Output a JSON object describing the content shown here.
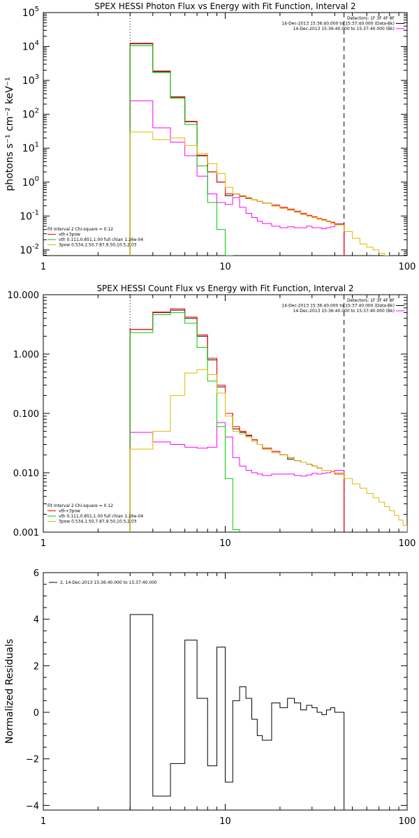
{
  "chart_data": [
    {
      "type": "line",
      "title": "SPEX HESSI Photon Flux vs Energy with Fit Function, Interval 2",
      "xlabel": "",
      "ylabel": "photons s⁻¹ cm⁻² keV⁻¹",
      "x_scale": "log",
      "y_scale": "log",
      "xlim": [
        1,
        100
      ],
      "ylim": [
        0.0068,
        100000
      ],
      "x_ticks": [
        1,
        10,
        100
      ],
      "x_tick_labels": [
        "1",
        "10",
        "100"
      ],
      "y_ticks": [
        0.01,
        0.1,
        1,
        10,
        100,
        1000,
        10000,
        100000
      ],
      "y_tick_labels": [
        {
          "base": "10",
          "exp": "-2"
        },
        {
          "base": "10",
          "exp": "-1"
        },
        {
          "base": "10",
          "exp": "0"
        },
        {
          "base": "10",
          "exp": "1"
        },
        {
          "base": "10",
          "exp": "2"
        },
        {
          "base": "10",
          "exp": "3"
        },
        {
          "base": "10",
          "exp": "4"
        },
        {
          "base": "10",
          "exp": "5"
        }
      ],
      "vlines": [
        {
          "x": 3.0,
          "style": "dotted"
        },
        {
          "x": 45.0,
          "style": "dashed"
        }
      ],
      "legend_top_right": [
        {
          "text": "Detectors: 1F 3F 4F 8F",
          "color": "#000000",
          "line": false
        },
        {
          "text": "14-Dec-2013 15:36:40.000 to 15:37:40.000 (Data-Bk)",
          "color": "#000000",
          "line": true
        },
        {
          "text": "14-Dec-2013 15:36:40.000 to 15:37:40.000 (Bk)",
          "color": "#ff00ff",
          "line": true
        }
      ],
      "legend_bottom_left": [
        {
          "text": "Fit Interval  2   Chi-square = 0.12",
          "color": "#000000",
          "line": false
        },
        {
          "text": "vth+3pow",
          "color": "#ff0000",
          "line": true
        },
        {
          "text": "vth 0.111,0.851,1.00  full chian 1.26e-04",
          "color": "#00cc00",
          "line": true
        },
        {
          "text": "3pow 0.534,1.50,7.87,9.50,10.5,2.03",
          "color": "#ddbb00",
          "line": true
        }
      ],
      "bin_edges": [
        3,
        4,
        5,
        6,
        7,
        8,
        9,
        10,
        11,
        12,
        13,
        14,
        15,
        16,
        18,
        20,
        22,
        24,
        26,
        28,
        30,
        32,
        34,
        36,
        38,
        40,
        45,
        50,
        55,
        60,
        65,
        70,
        75,
        80,
        85,
        90,
        95,
        100
      ],
      "series": [
        {
          "color": "#000000",
          "step": true,
          "values": [
            12000,
            1800,
            320,
            60,
            6,
            2,
            1,
            0.4,
            0.45,
            0.38,
            0.33,
            0.3,
            0.27,
            0.24,
            0.2,
            0.17,
            0.15,
            0.13,
            0.11,
            0.1,
            0.09,
            0.08,
            0.075,
            0.07,
            0.065,
            0.058
          ]
        },
        {
          "color": "#ff00ff",
          "step": true,
          "values": [
            250,
            40,
            15,
            6,
            1.5,
            0.45,
            0.25,
            0.22,
            0.35,
            0.18,
            0.12,
            0.09,
            0.07,
            0.06,
            0.05,
            0.045,
            0.048,
            0.045,
            0.045,
            0.05,
            0.045,
            0.045,
            0.042,
            0.045,
            0.048,
            0.055
          ]
        },
        {
          "color": "#ff0000",
          "step": true,
          "values": [
            12500,
            1900,
            330,
            62,
            6.2,
            2.0,
            1.0,
            0.45,
            0.45,
            0.38,
            0.33,
            0.3,
            0.27,
            0.24,
            0.21,
            0.18,
            0.16,
            0.14,
            0.12,
            0.105,
            0.095,
            0.085,
            0.078,
            0.07,
            0.065,
            0.058
          ]
        },
        {
          "color": "#00cc00",
          "step": true,
          "values": [
            10500,
            1700,
            300,
            50,
            3,
            0.25,
            0.04,
            0.006
          ]
        },
        {
          "color": "#ddbb00",
          "step": true,
          "values": [
            30,
            18,
            20,
            12,
            7,
            3.5,
            1.8,
            0.7,
            0.45,
            0.4,
            0.35,
            0.3,
            0.27,
            0.24,
            0.2,
            0.17,
            0.15,
            0.13,
            0.11,
            0.1,
            0.09,
            0.08,
            0.075,
            0.068,
            0.06,
            0.055,
            0.035,
            0.022,
            0.015,
            0.012,
            0.01,
            0.008,
            0.0065
          ]
        }
      ]
    },
    {
      "type": "line",
      "title": "SPEX HESSI Count Flux vs Energy with Fit Function, Interval 2",
      "xlabel": "",
      "ylabel": "",
      "x_scale": "log",
      "y_scale": "log",
      "xlim": [
        1,
        100
      ],
      "ylim": [
        0.001,
        10
      ],
      "x_ticks": [
        1,
        10,
        100
      ],
      "x_tick_labels": [
        "1",
        "10",
        "100"
      ],
      "y_ticks": [
        0.001,
        0.01,
        0.1,
        1,
        10
      ],
      "y_tick_labels": [
        "0.001",
        "0.010",
        "0.100",
        "1.000",
        "10.000"
      ],
      "vlines": [
        {
          "x": 3.0,
          "style": "dotted"
        },
        {
          "x": 45.0,
          "style": "dashed"
        }
      ],
      "legend_top_right": [
        {
          "text": "Detectors: 1F 3F 4F 8F",
          "color": "#000000",
          "line": false
        },
        {
          "text": "14-Dec-2013 15:36:40.000 to 15:37:40.000 (Data-Bk)",
          "color": "#000000",
          "line": true
        },
        {
          "text": "14-Dec-2013 15:36:40.000 to 15:37:40.000 (Bk)",
          "color": "#ff00ff",
          "line": true
        }
      ],
      "legend_bottom_left": [
        {
          "text": "Fit Interval  2   Chi-square = 0.12",
          "color": "#000000",
          "line": false
        },
        {
          "text": "vth+3pow",
          "color": "#ff0000",
          "line": true
        },
        {
          "text": "vth 0.111,0.851,1.00  full chian 1.26e-04",
          "color": "#00cc00",
          "line": true
        },
        {
          "text": "3pow 0.534,1.50,7.87,9.50,10.5,2.03",
          "color": "#ddbb00",
          "line": true
        }
      ],
      "bin_edges": [
        3,
        4,
        5,
        6,
        7,
        8,
        9,
        10,
        11,
        12,
        13,
        14,
        15,
        16,
        18,
        20,
        22,
        24,
        26,
        28,
        30,
        32,
        34,
        36,
        38,
        40,
        45,
        50,
        55,
        60,
        65,
        70,
        75,
        80,
        85,
        90,
        95,
        100
      ],
      "series": [
        {
          "color": "#000000",
          "step": true,
          "values": [
            2.6,
            5.0,
            5.5,
            4.0,
            2.0,
            0.8,
            0.28,
            0.1,
            0.055,
            0.048,
            0.042,
            0.036,
            0.03,
            0.025,
            0.022,
            0.02,
            0.017,
            0.016,
            0.015,
            0.014,
            0.013,
            0.012,
            0.011,
            0.011,
            0.0105,
            0.01
          ]
        },
        {
          "color": "#ff00ff",
          "step": true,
          "values": [
            0.048,
            0.033,
            0.03,
            0.027,
            0.026,
            0.027,
            0.07,
            0.04,
            0.018,
            0.013,
            0.011,
            0.01,
            0.0095,
            0.009,
            0.0095,
            0.0095,
            0.0095,
            0.009,
            0.0088,
            0.0092,
            0.0098,
            0.0095,
            0.0098,
            0.01,
            0.0105,
            0.011
          ]
        },
        {
          "color": "#ff0000",
          "step": true,
          "values": [
            2.6,
            5.1,
            5.8,
            4.2,
            2.1,
            0.85,
            0.3,
            0.1,
            0.06,
            0.05,
            0.043,
            0.036,
            0.03,
            0.026,
            0.023,
            0.02,
            0.018,
            0.016,
            0.015,
            0.014,
            0.013,
            0.012,
            0.011,
            0.011,
            0.0105,
            0.0095
          ]
        },
        {
          "color": "#00cc00",
          "step": true,
          "values": [
            2.3,
            4.6,
            5.0,
            3.3,
            1.3,
            0.35,
            0.06,
            0.008,
            0.0011
          ]
        },
        {
          "color": "#ddbb00",
          "step": true,
          "values": [
            0.025,
            0.05,
            0.2,
            0.48,
            0.55,
            0.45,
            0.22,
            0.09,
            0.05,
            0.045,
            0.04,
            0.034,
            0.03,
            0.025,
            0.022,
            0.02,
            0.018,
            0.016,
            0.015,
            0.014,
            0.013,
            0.012,
            0.011,
            0.011,
            0.0105,
            0.01,
            0.008,
            0.0065,
            0.0055,
            0.0045,
            0.0038,
            0.0032,
            0.0027,
            0.0023,
            0.0019,
            0.0016,
            0.0013
          ]
        }
      ]
    },
    {
      "type": "line",
      "title": "",
      "xlabel": "",
      "ylabel": "Normalized Residuals",
      "x_scale": "log",
      "y_scale": "linear",
      "xlim": [
        1,
        100
      ],
      "ylim": [
        -4.2,
        6
      ],
      "x_ticks": [
        1,
        10,
        100
      ],
      "x_tick_labels": [
        "1",
        "10",
        "100"
      ],
      "y_ticks": [
        -4,
        -2,
        0,
        2,
        4,
        6
      ],
      "y_tick_labels": [
        "−4",
        "−2",
        "0",
        "2",
        "4",
        "6"
      ],
      "vlines": [],
      "legend_top_left": [
        {
          "text": "2, 14-Dec-2013 15:36:40.000 to 15:37:40.000",
          "color": "#000000",
          "line": true
        }
      ],
      "bin_edges": [
        3,
        4,
        5,
        6,
        7,
        8,
        9,
        10,
        11,
        12,
        13,
        14,
        15,
        16,
        18,
        20,
        22,
        24,
        26,
        28,
        30,
        32,
        34,
        36,
        38,
        40,
        45
      ],
      "series": [
        {
          "color": "#000000",
          "step": true,
          "values": [
            4.2,
            -3.6,
            -2.2,
            3.1,
            0.6,
            -2.3,
            2.8,
            -3.0,
            0.5,
            1.1,
            0.6,
            -0.3,
            -1.0,
            -1.2,
            0.4,
            0.2,
            0.6,
            0.4,
            0.1,
            0.3,
            0.2,
            0.0,
            -0.1,
            0.1,
            0.2,
            0.0
          ]
        }
      ]
    }
  ]
}
